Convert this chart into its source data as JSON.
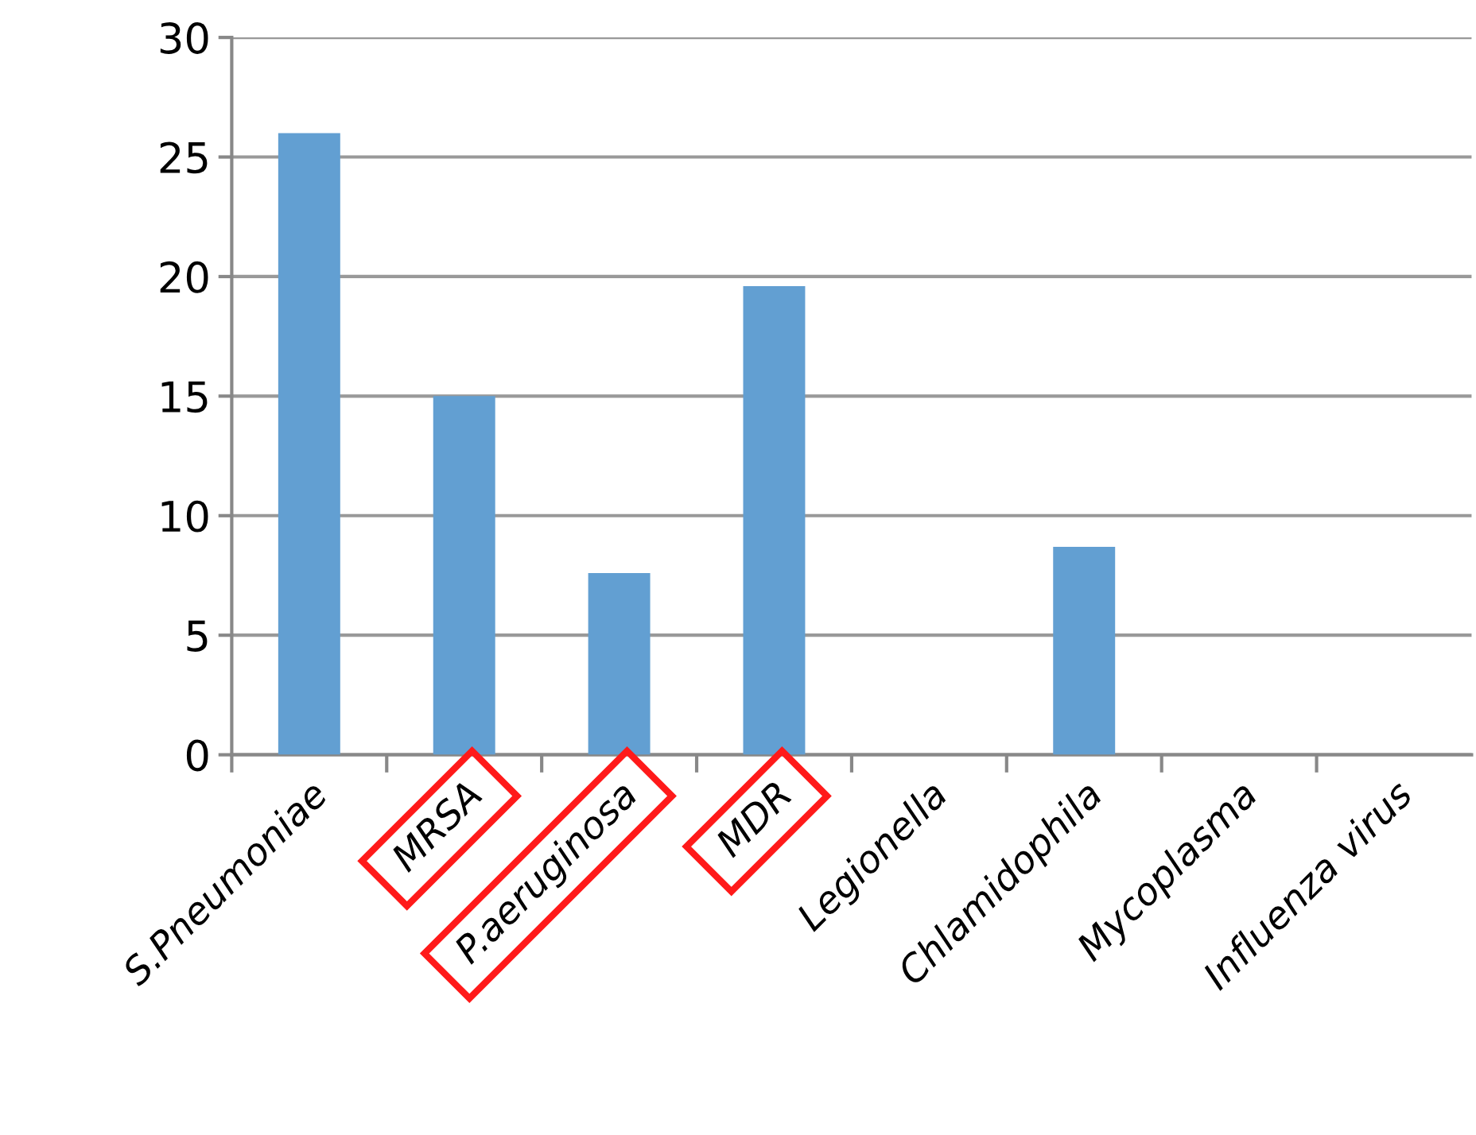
{
  "chart_data": {
    "type": "bar",
    "categories": [
      "S.Pneumoniae",
      "MRSA",
      "P.aeruginosa",
      "MDR",
      "Legionella",
      "Chlamidophila",
      "Mycoplasma",
      "Influenza virus"
    ],
    "values": [
      26,
      15,
      7.6,
      19.6,
      0,
      8.7,
      0,
      0
    ],
    "color": "#629fd2",
    "ylim": [
      0,
      30
    ],
    "yticks": [
      0,
      5,
      10,
      15,
      20,
      25,
      30
    ],
    "grid": "y",
    "legend": false
  }
}
